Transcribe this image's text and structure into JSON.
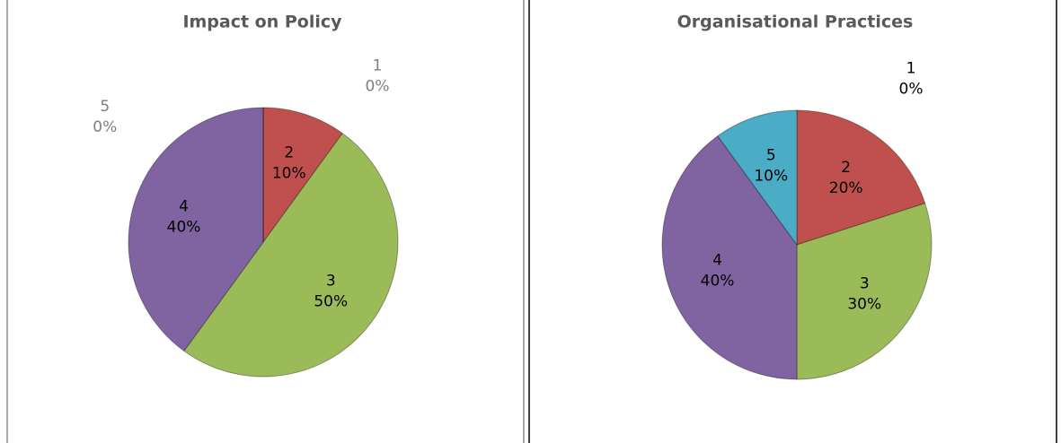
{
  "chart_data": [
    {
      "type": "pie",
      "title": "Impact on Policy",
      "categories": [
        "1",
        "2",
        "3",
        "4",
        "5"
      ],
      "values": [
        0,
        10,
        50,
        40,
        0
      ],
      "value_labels": [
        "0%",
        "10%",
        "50%",
        "40%",
        "0%"
      ],
      "colors": [
        "#4f81bd",
        "#c0504d",
        "#9bbb59",
        "#8064a2",
        "#4bacc6"
      ]
    },
    {
      "type": "pie",
      "title": "Organisational Practices",
      "categories": [
        "1",
        "2",
        "3",
        "4",
        "5"
      ],
      "values": [
        0,
        20,
        30,
        40,
        10
      ],
      "value_labels": [
        "0%",
        "20%",
        "30%",
        "40%",
        "10%"
      ],
      "colors": [
        "#4f81bd",
        "#c0504d",
        "#9bbb59",
        "#8064a2",
        "#4bacc6"
      ]
    }
  ]
}
